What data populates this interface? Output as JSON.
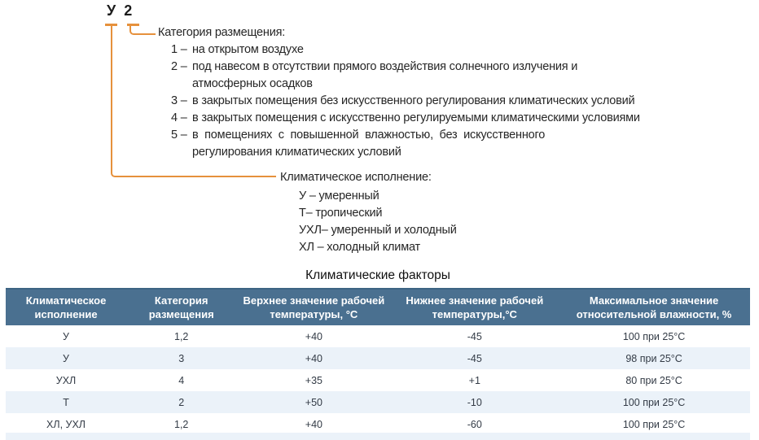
{
  "designation": {
    "climate_letter": "У",
    "category_digit": "2"
  },
  "placement": {
    "title": "Категория размещения:",
    "items": [
      {
        "num": "1",
        "text": "на открытом воздухе"
      },
      {
        "num": "2",
        "text": "под навесом в отсутствии прямого воздействия солнечного излучения и\nатмосферных осадков"
      },
      {
        "num": "3",
        "text": "в закрытых помещения без искусственного регулирования климатических условий"
      },
      {
        "num": "4",
        "text": "в закрытых помещения с искусственно регулируемыми климатическими условиями"
      },
      {
        "num": "5",
        "text": "в  помещениях  с  повышенной  влажностью,  без  искусственного\nрегулирования климатических условий"
      }
    ]
  },
  "climate": {
    "title": "Климатическое исполнение:",
    "items": [
      "У – умеренный",
      "Т– тропический",
      "УХЛ– умеренный и холодный",
      "ХЛ – холодный климат"
    ]
  },
  "table": {
    "title": "Климатические факторы",
    "headers": [
      "Климатическое\nисполнение",
      "Категория\nразмещения",
      "Верхнее значение рабочей\nтемпературы, °С",
      "Нижнее значение рабочей\nтемпературы,°С",
      "Максимальное значение\nотносительной влажности, %"
    ],
    "rows": [
      [
        "У",
        "1,2",
        "+40",
        "-45",
        "100 при 25°С"
      ],
      [
        "У",
        "3",
        "+40",
        "-45",
        "98 при 25°С"
      ],
      [
        "УХЛ",
        "4",
        "+35",
        "+1",
        "80 при 25°С"
      ],
      [
        "Т",
        "2",
        "+50",
        "-10",
        "100 при 25°С"
      ],
      [
        "ХЛ, УХЛ",
        "1,2",
        "+40",
        "-60",
        "100 при 25°С"
      ]
    ]
  },
  "colors": {
    "connector_orange": "#E6913C",
    "table_header_bg": "#4A7090",
    "table_header_top_border": "#3D6483",
    "table_stripe_bg": "#EBF2F9"
  }
}
